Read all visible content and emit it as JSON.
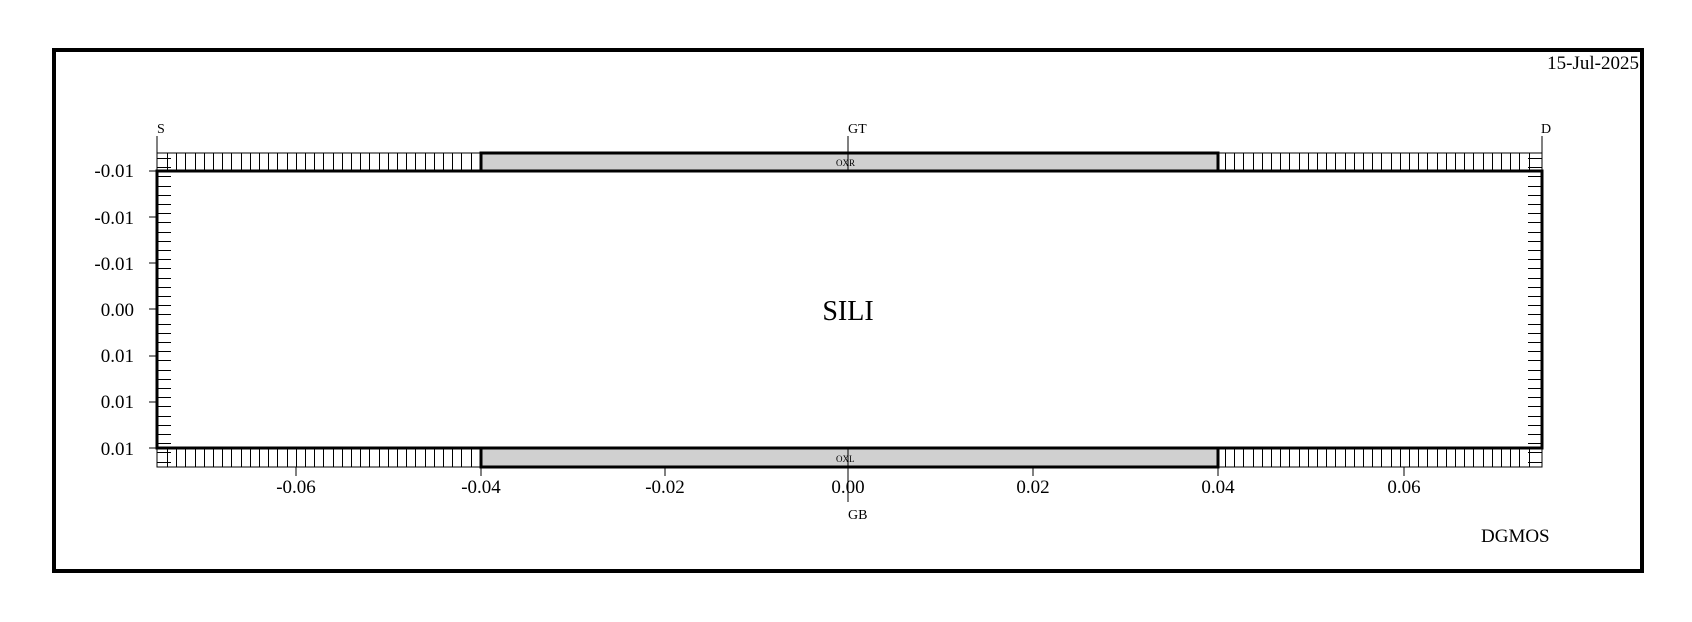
{
  "date": "15-Jul-2025",
  "device_name": "DGMOS",
  "region_label": "SILI",
  "electrodes": {
    "source": "S",
    "gate_top": "GT",
    "drain": "D",
    "gate_bottom": "GB"
  },
  "oxides": [
    {
      "label": "OXR",
      "position": "top"
    },
    {
      "label": "OXL",
      "position": "bottom"
    }
  ],
  "axes": {
    "x_ticks": [
      "-0.06",
      "-0.04",
      "-0.02",
      "0.00",
      "0.02",
      "0.04",
      "0.06"
    ],
    "y_ticks": [
      "-0.01",
      "-0.01",
      "-0.01",
      "0.00",
      "0.01",
      "0.01",
      "0.01"
    ]
  },
  "colors": {
    "oxide_fill": "#d0d0d0",
    "line": "#000000"
  }
}
